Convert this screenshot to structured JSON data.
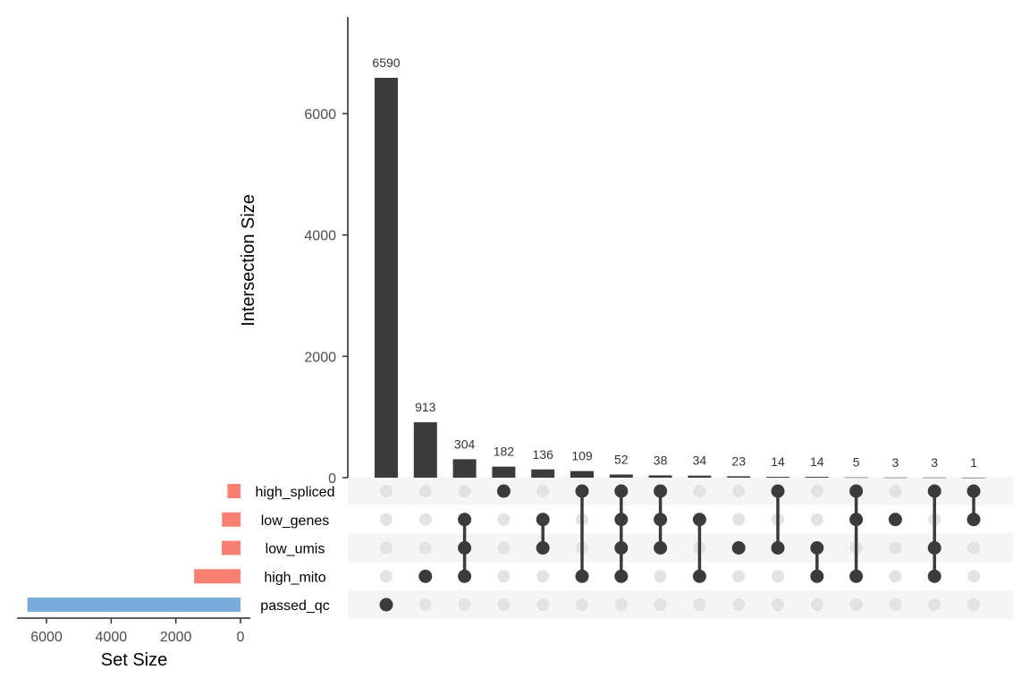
{
  "chart_data": {
    "type": "upset",
    "intersection_axis": {
      "title": "Intersection Size",
      "ticks": [
        0,
        2000,
        4000,
        6000
      ],
      "tick_labels": [
        "0",
        "2000",
        "4000",
        "6000"
      ],
      "ylim": [
        0,
        7500
      ]
    },
    "set_size_axis": {
      "title": "Set Size",
      "ticks": [
        6000,
        4000,
        2000,
        0
      ],
      "tick_labels": [
        "6000",
        "4000",
        "2000",
        "0"
      ],
      "xlim": [
        6800,
        0
      ]
    },
    "sets": [
      {
        "name": "high_spliced",
        "size": 404,
        "color": "#fa8072"
      },
      {
        "name": "low_genes",
        "size": 573,
        "color": "#fa8072"
      },
      {
        "name": "low_umis",
        "size": 584,
        "color": "#fa8072"
      },
      {
        "name": "high_mito",
        "size": 1434,
        "color": "#fa8072"
      },
      {
        "name": "passed_qc",
        "size": 6590,
        "color": "#7aadde"
      }
    ],
    "intersections": [
      {
        "value": 6590,
        "label": "6590",
        "sets": [
          "passed_qc"
        ]
      },
      {
        "value": 913,
        "label": "913",
        "sets": [
          "high_mito"
        ]
      },
      {
        "value": 304,
        "label": "304",
        "sets": [
          "low_genes",
          "low_umis",
          "high_mito"
        ]
      },
      {
        "value": 182,
        "label": "182",
        "sets": [
          "high_spliced"
        ]
      },
      {
        "value": 136,
        "label": "136",
        "sets": [
          "low_genes",
          "low_umis"
        ]
      },
      {
        "value": 109,
        "label": "109",
        "sets": [
          "high_spliced",
          "high_mito"
        ]
      },
      {
        "value": 52,
        "label": "52",
        "sets": [
          "high_spliced",
          "low_genes",
          "low_umis",
          "high_mito"
        ]
      },
      {
        "value": 38,
        "label": "38",
        "sets": [
          "high_spliced",
          "low_genes",
          "low_umis"
        ]
      },
      {
        "value": 34,
        "label": "34",
        "sets": [
          "low_genes",
          "high_mito"
        ]
      },
      {
        "value": 23,
        "label": "23",
        "sets": [
          "low_umis"
        ]
      },
      {
        "value": 14,
        "label": "14",
        "sets": [
          "high_spliced",
          "low_umis"
        ]
      },
      {
        "value": 14,
        "label": "14",
        "sets": [
          "low_umis",
          "high_mito"
        ]
      },
      {
        "value": 5,
        "label": "5",
        "sets": [
          "high_spliced",
          "low_genes",
          "high_mito"
        ]
      },
      {
        "value": 3,
        "label": "3",
        "sets": [
          "low_genes"
        ]
      },
      {
        "value": 3,
        "label": "3",
        "sets": [
          "high_spliced",
          "low_umis",
          "high_mito"
        ]
      },
      {
        "value": 1,
        "label": "1",
        "sets": [
          "high_spliced",
          "low_genes"
        ]
      }
    ],
    "colors": {
      "bar": "#3b3b3b",
      "dot_active": "#3b3b3b",
      "dot_inactive": "#e3e3e3",
      "stripe": "#f5f5f5",
      "axis": "#000000"
    }
  }
}
